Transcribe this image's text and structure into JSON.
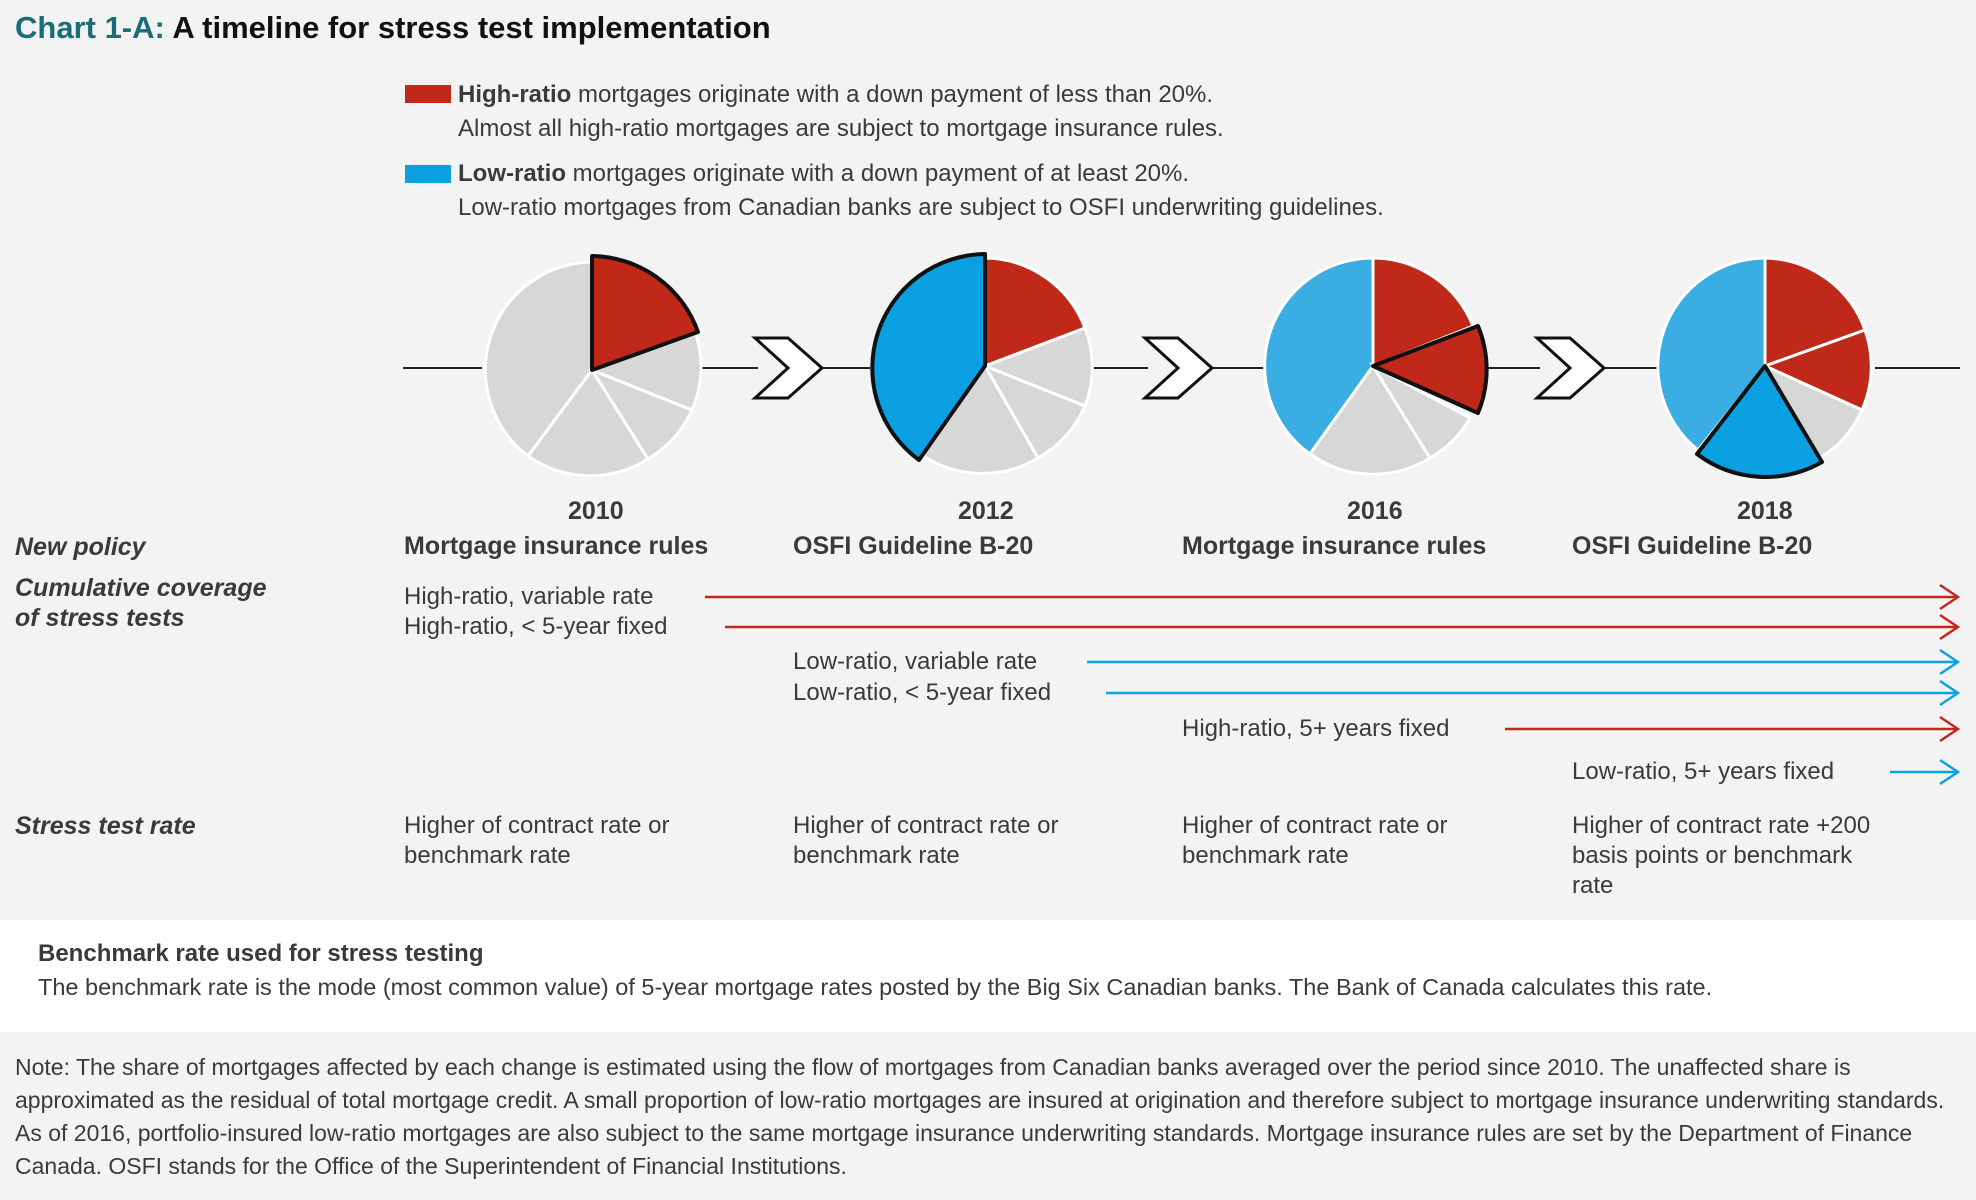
{
  "title": {
    "label": "Chart 1-A:",
    "text": "A timeline for stress test implementation"
  },
  "legend": {
    "high": {
      "bold": "High-ratio",
      "line1": " mortgages originate with a down payment of less than 20%.",
      "line2": "Almost all high-ratio mortgages are subject to mortgage insurance rules.",
      "color": "#c0281a"
    },
    "low": {
      "bold": "Low-ratio",
      "line1": " mortgages originate with a down payment of at least 20%.",
      "line2": "Low-ratio mortgages from Canadian banks are subject to OSFI underwriting guidelines.",
      "color": "#0aa0e2"
    }
  },
  "colors": {
    "high": "#c0281a",
    "low_new": "#0aa0e2",
    "low_old": "#3aaee3",
    "unaffected": "#d8d8d8"
  },
  "row_labels": {
    "new_policy": "New policy",
    "coverage_line1": "Cumulative coverage",
    "coverage_line2": "of stress tests",
    "stress_rate": "Stress test rate"
  },
  "timeline": [
    {
      "year": "2010",
      "policy": "Mortgage insurance rules",
      "rate": "Higher of contract rate or benchmark rate"
    },
    {
      "year": "2012",
      "policy": "OSFI Guideline B-20",
      "rate": "Higher of contract rate or benchmark rate"
    },
    {
      "year": "2016",
      "policy": "Mortgage insurance rules",
      "rate": "Higher of contract rate or benchmark rate"
    },
    {
      "year": "2018",
      "policy": "OSFI Guideline B-20",
      "rate": "Higher of contract rate +200 basis points or benchmark rate"
    }
  ],
  "coverage": [
    {
      "label": "High-ratio, variable rate",
      "type": "high"
    },
    {
      "label": "High-ratio, < 5-year fixed",
      "type": "high"
    },
    {
      "label": "Low-ratio, variable rate",
      "type": "low"
    },
    {
      "label": "Low-ratio, < 5-year fixed",
      "type": "low"
    },
    {
      "label": "High-ratio, 5+ years fixed",
      "type": "high"
    },
    {
      "label": "Low-ratio, 5+ years fixed",
      "type": "low"
    }
  ],
  "benchmark": {
    "title": "Benchmark rate used for stress testing",
    "text": "The benchmark rate is the mode (most common value) of 5-year mortgage rates posted by the Big Six Canadian banks. The Bank of Canada calculates this rate."
  },
  "note": "Note: The share of mortgages affected by each change is estimated using the flow of mortgages from Canadian banks averaged over the period since 2010. The unaffected share is approximated as the residual of total mortgage credit. A small proportion of low-ratio mortgages are insured at origination and therefore subject to mortgage insurance underwriting standards. As of 2016, portfolio-insured low-ratio mortgages are also subject to the same mortgage insurance underwriting standards. Mortgage insurance rules are set by the Department of Finance Canada. OSFI stands for the Office of the Superintendent of Financial Institutions."
}
